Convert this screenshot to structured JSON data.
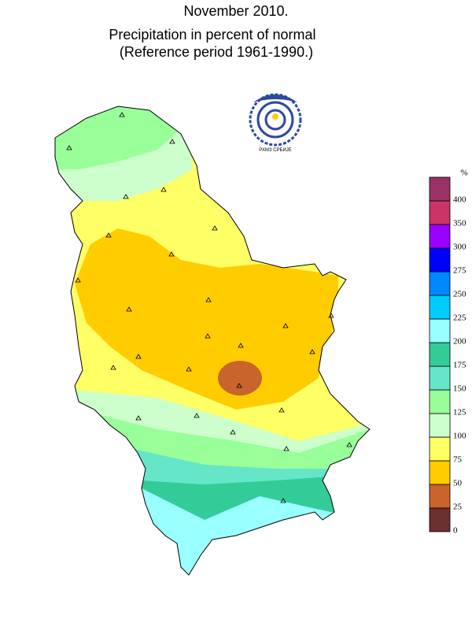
{
  "title": "November 2010.",
  "subtitle": "Precipitation in percent of normal",
  "note": "(Reference period 1961-1990.)",
  "logo_text": "РХМЗ СРБИЈЕ",
  "legend": {
    "unit": "%",
    "ticks": [
      0,
      25,
      50,
      75,
      100,
      125,
      150,
      175,
      200,
      225,
      250,
      275,
      300,
      350,
      400
    ],
    "colors": [
      "#6b3030",
      "#c8642c",
      "#ffcc00",
      "#ffff66",
      "#ccffcc",
      "#99ff99",
      "#66e6c8",
      "#33cc99",
      "#99ffff",
      "#00ccff",
      "#0088ff",
      "#0000ff",
      "#9900ff",
      "#cc3366",
      "#993366"
    ]
  }
}
